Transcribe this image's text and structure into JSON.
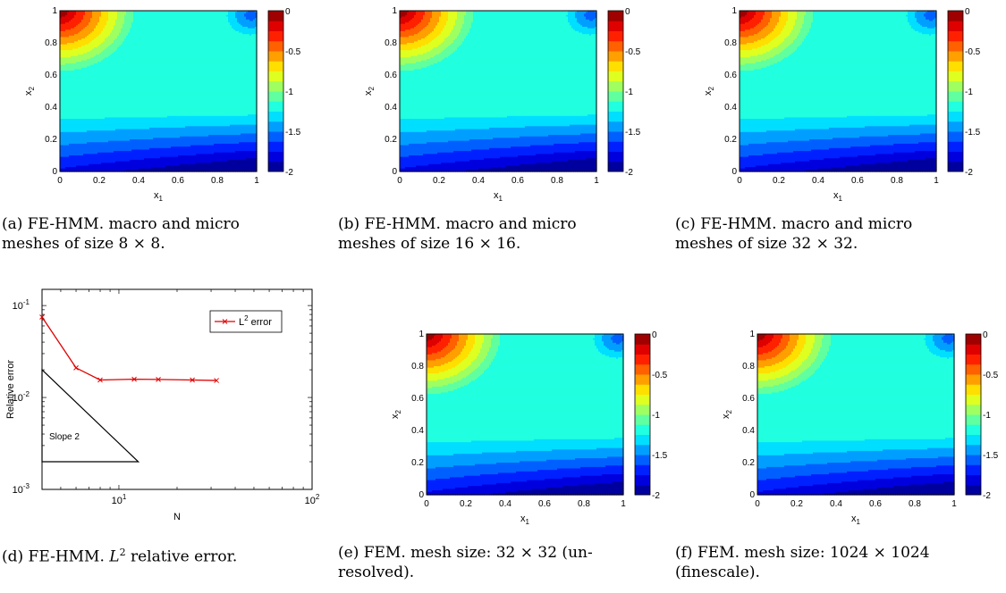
{
  "contour_panels": [
    {
      "id": "a",
      "caption_lines": [
        "(a) FE-HMM. macro and micro",
        "meshes of size 8 × 8."
      ],
      "xlabel": "x1",
      "ylabel": "x2",
      "xticks": [
        "0",
        "0.2",
        "0.4",
        "0.6",
        "0.8",
        "1"
      ],
      "yticks": [
        "0",
        "0.2",
        "0.4",
        "0.6",
        "0.8",
        "1"
      ],
      "colorbar_ticks": [
        "0",
        "-0.5",
        "-1",
        "-1.5",
        "-2"
      ]
    },
    {
      "id": "b",
      "caption_lines": [
        "(b) FE-HMM. macro and micro",
        "meshes of size 16 × 16."
      ],
      "xlabel": "x1",
      "ylabel": "x2",
      "xticks": [
        "0",
        "0.2",
        "0.4",
        "0.6",
        "0.8",
        "1"
      ],
      "yticks": [
        "0",
        "0.2",
        "0.4",
        "0.6",
        "0.8",
        "1"
      ],
      "colorbar_ticks": [
        "0",
        "-0.5",
        "-1",
        "-1.5",
        "-2"
      ]
    },
    {
      "id": "c",
      "caption_lines": [
        "(c) FE-HMM. macro and micro",
        "meshes of size 32 × 32."
      ],
      "xlabel": "x1",
      "ylabel": "x2",
      "xticks": [
        "0",
        "0.2",
        "0.4",
        "0.6",
        "0.8",
        "1"
      ],
      "yticks": [
        "0",
        "0.2",
        "0.4",
        "0.6",
        "0.8",
        "1"
      ],
      "colorbar_ticks": [
        "0",
        "-0.5",
        "-1",
        "-1.5",
        "-2"
      ]
    },
    {
      "id": "e",
      "caption_lines": [
        "(e) FEM. mesh size: 32 × 32 (un-",
        "resolved)."
      ],
      "xlabel": "x1",
      "ylabel": "x2",
      "xticks": [
        "0",
        "0.2",
        "0.4",
        "0.6",
        "0.8",
        "1"
      ],
      "yticks": [
        "0",
        "0.2",
        "0.4",
        "0.6",
        "0.8",
        "1"
      ],
      "colorbar_ticks": [
        "0",
        "-0.5",
        "-1",
        "-1.5",
        "-2"
      ]
    },
    {
      "id": "f",
      "caption_lines": [
        "(f) FEM. mesh size: 1024 × 1024",
        "(finescale)."
      ],
      "xlabel": "x1",
      "ylabel": "x2",
      "xticks": [
        "0",
        "0.2",
        "0.4",
        "0.6",
        "0.8",
        "1"
      ],
      "yticks": [
        "0",
        "0.2",
        "0.4",
        "0.6",
        "0.8",
        "1"
      ],
      "colorbar_ticks": [
        "0",
        "-0.5",
        "-1",
        "-1.5",
        "-2"
      ]
    }
  ],
  "error_panel": {
    "caption": "(d) FE-HMM. L2 relative error.",
    "legend_label": "L2 error",
    "ylabel": "Relative error",
    "xlabel": "N",
    "slope_label": "Slope 2",
    "xticks": [
      "10^1",
      "10^2"
    ],
    "yticks": [
      "10^-1",
      "10^-2",
      "10^-3"
    ]
  },
  "chart_data": [
    {
      "type": "heatmap",
      "title": "",
      "xlabel": "x1",
      "ylabel": "x2",
      "xlim": [
        0,
        1
      ],
      "ylim": [
        0,
        1
      ],
      "colorbar_range": [
        -2,
        0
      ],
      "contour_levels": [
        -2,
        -1.875,
        -1.75,
        -1.625,
        -1.5,
        -1.375,
        -1.25,
        -1.125,
        -1,
        -0.875,
        -0.75,
        -0.625,
        -0.5,
        -0.375,
        -0.25,
        -0.125,
        0
      ],
      "mesh": "8 × 8"
    },
    {
      "type": "heatmap",
      "title": "",
      "xlabel": "x1",
      "ylabel": "x2",
      "xlim": [
        0,
        1
      ],
      "ylim": [
        0,
        1
      ],
      "colorbar_range": [
        -2,
        0
      ],
      "mesh": "16 × 16"
    },
    {
      "type": "heatmap",
      "title": "",
      "xlabel": "x1",
      "ylabel": "x2",
      "xlim": [
        0,
        1
      ],
      "ylim": [
        0,
        1
      ],
      "colorbar_range": [
        -2,
        0
      ],
      "mesh": "32 × 32"
    },
    {
      "type": "line",
      "title": "",
      "xlabel": "N",
      "ylabel": "Relative error",
      "xscale": "log",
      "yscale": "log",
      "xlim": [
        4,
        100
      ],
      "ylim": [
        0.001,
        0.15
      ],
      "legend": "top-right",
      "series": [
        {
          "name": "L2 error",
          "x": [
            4,
            6,
            8,
            12,
            16,
            24,
            32
          ],
          "y": [
            0.075,
            0.021,
            0.0155,
            0.0158,
            0.0157,
            0.0155,
            0.0153
          ],
          "color": "#e00000"
        }
      ],
      "slope_triangle": {
        "label": "Slope 2",
        "vertices": [
          [
            4,
            0.02
          ],
          [
            4,
            0.002
          ],
          [
            12.6,
            0.002
          ]
        ]
      }
    },
    {
      "type": "heatmap",
      "title": "",
      "xlabel": "x1",
      "ylabel": "x2",
      "xlim": [
        0,
        1
      ],
      "ylim": [
        0,
        1
      ],
      "colorbar_range": [
        -2,
        0
      ],
      "mesh": "32 × 32"
    },
    {
      "type": "heatmap",
      "title": "",
      "xlabel": "x1",
      "ylabel": "x2",
      "xlim": [
        0,
        1
      ],
      "ylim": [
        0,
        1
      ],
      "colorbar_range": [
        -2,
        0
      ],
      "mesh": "1024 × 1024"
    }
  ]
}
